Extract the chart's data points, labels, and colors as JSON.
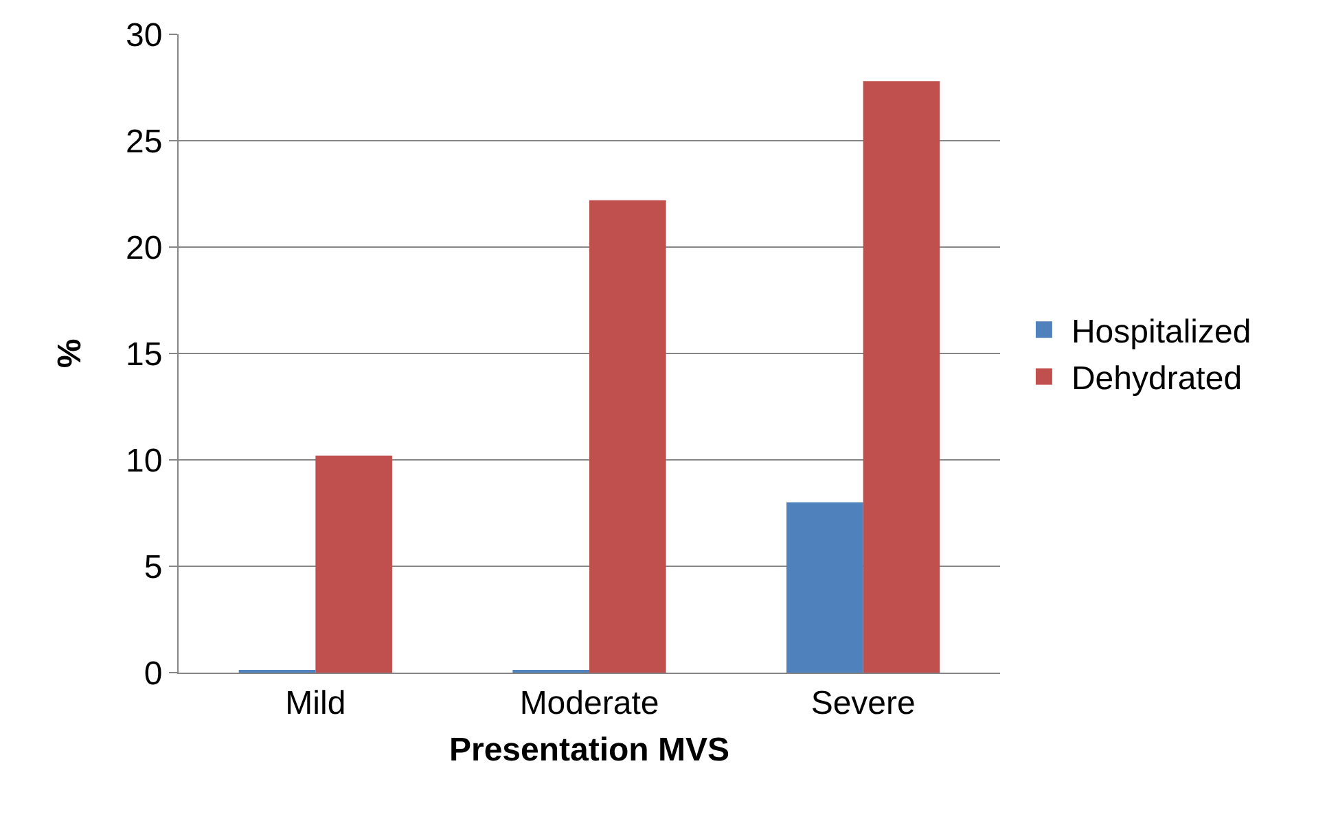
{
  "chart_data": {
    "type": "bar",
    "xlabel": "Presentation MVS",
    "ylabel": "%",
    "categories": [
      "Mild",
      "Moderate",
      "Severe"
    ],
    "series": [
      {
        "name": "Hospitalized",
        "color": "#4f81bd",
        "values": [
          0.1,
          0.1,
          8
        ]
      },
      {
        "name": "Dehydrated",
        "color": "#c0504d",
        "values": [
          10.2,
          22.2,
          27.8
        ]
      }
    ],
    "ylim": [
      0,
      30
    ],
    "yticks": [
      0,
      5,
      10,
      15,
      20,
      25,
      30
    ],
    "grid": "y",
    "legend": "right"
  }
}
